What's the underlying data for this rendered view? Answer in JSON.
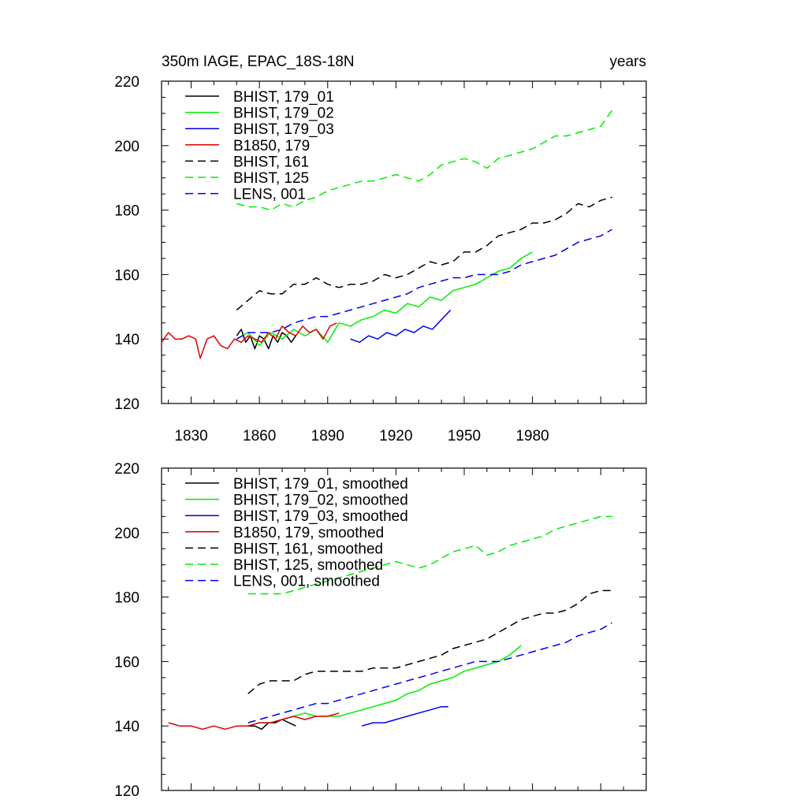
{
  "colors": {
    "black": "#000000",
    "green": "#00ee00",
    "blue": "#0000ee",
    "red": "#dd0000"
  },
  "chart_data": [
    {
      "type": "line",
      "title_left": "350m IAGE, EPAC_18S-18N",
      "title_right": "years",
      "xlim": [
        1817,
        2030
      ],
      "ylim": [
        120,
        220
      ],
      "yticks": [
        120,
        140,
        160,
        180,
        200,
        220
      ],
      "xticks": [
        1830,
        1860,
        1890,
        1920,
        1950,
        1980
      ],
      "xtick_labels": [
        "1830",
        "1860",
        "1890",
        "1920",
        "1950",
        "1980"
      ],
      "legend_position": "top-left",
      "series": [
        {
          "name": "BHIST, 179_01",
          "color": "#000000",
          "dash": false,
          "x": [
            1850,
            1852,
            1854,
            1856,
            1858,
            1860,
            1862,
            1864,
            1866,
            1868,
            1870,
            1872,
            1874,
            1876
          ],
          "y": [
            141,
            143,
            139,
            141,
            137,
            141,
            140,
            137,
            141,
            139,
            142,
            141,
            139,
            141
          ]
        },
        {
          "name": "BHIST, 179_02",
          "color": "#00ee00",
          "dash": false,
          "x": [
            1850,
            1855,
            1860,
            1865,
            1870,
            1875,
            1880,
            1885,
            1890,
            1895,
            1900,
            1905,
            1910,
            1915,
            1920,
            1925,
            1930,
            1935,
            1940,
            1945,
            1950,
            1955,
            1960,
            1965,
            1970,
            1975,
            1980
          ],
          "y": [
            140,
            142,
            138,
            142,
            140,
            143,
            141,
            143,
            139,
            145,
            144,
            146,
            147,
            149,
            148,
            151,
            150,
            153,
            152,
            155,
            156,
            157,
            159,
            161,
            162,
            165,
            167
          ]
        },
        {
          "name": "BHIST, 179_03",
          "color": "#0000ee",
          "dash": false,
          "x": [
            1900,
            1904,
            1908,
            1912,
            1916,
            1920,
            1924,
            1928,
            1932,
            1936,
            1940,
            1944
          ],
          "y": [
            140,
            139,
            141,
            140,
            142,
            141,
            143,
            142,
            144,
            143,
            146,
            149
          ]
        },
        {
          "name": "B1850, 179",
          "color": "#dd0000",
          "dash": false,
          "x": [
            1817,
            1820,
            1823,
            1826,
            1829,
            1832,
            1834,
            1837,
            1840,
            1843,
            1846,
            1849,
            1852,
            1855,
            1858,
            1861,
            1864,
            1867,
            1870,
            1873,
            1876,
            1879,
            1882,
            1885,
            1888,
            1891,
            1894
          ],
          "y": [
            139,
            142,
            140,
            140,
            141,
            140,
            134,
            140,
            141,
            138,
            137,
            140,
            139,
            141,
            140,
            139,
            142,
            140,
            144,
            142,
            141,
            144,
            142,
            143,
            140,
            144,
            145
          ]
        },
        {
          "name": "BHIST, 161",
          "color": "#000000",
          "dash": true,
          "x": [
            1850,
            1855,
            1860,
            1865,
            1870,
            1875,
            1880,
            1885,
            1890,
            1895,
            1900,
            1905,
            1910,
            1915,
            1920,
            1925,
            1930,
            1935,
            1940,
            1945,
            1950,
            1955,
            1960,
            1965,
            1970,
            1975,
            1980,
            1985,
            1990,
            1995,
            2000,
            2005,
            2010,
            2015
          ],
          "y": [
            149,
            152,
            155,
            154,
            154,
            157,
            157,
            159,
            157,
            156,
            157,
            157,
            158,
            160,
            159,
            160,
            162,
            164,
            163,
            164,
            167,
            167,
            169,
            172,
            173,
            174,
            176,
            176,
            177,
            179,
            182,
            181,
            183,
            184
          ]
        },
        {
          "name": "BHIST, 125",
          "color": "#00ee00",
          "dash": true,
          "x": [
            1850,
            1855,
            1860,
            1865,
            1870,
            1875,
            1880,
            1885,
            1890,
            1895,
            1900,
            1905,
            1910,
            1915,
            1920,
            1925,
            1930,
            1935,
            1940,
            1945,
            1950,
            1955,
            1960,
            1965,
            1970,
            1975,
            1980,
            1985,
            1990,
            1995,
            2000,
            2005,
            2010,
            2015
          ],
          "y": [
            182,
            181,
            181,
            180,
            182,
            181,
            183,
            184,
            186,
            187,
            188,
            189,
            189,
            190,
            191,
            190,
            189,
            191,
            194,
            195,
            196,
            195,
            193,
            196,
            197,
            198,
            199,
            201,
            203,
            203,
            204,
            205,
            206,
            211
          ]
        },
        {
          "name": "LENS, 001",
          "color": "#0000ee",
          "dash": true,
          "x": [
            1850,
            1855,
            1860,
            1865,
            1870,
            1875,
            1880,
            1885,
            1890,
            1895,
            1900,
            1905,
            1910,
            1915,
            1920,
            1925,
            1930,
            1935,
            1940,
            1945,
            1950,
            1955,
            1960,
            1965,
            1970,
            1975,
            1980,
            1985,
            1990,
            1995,
            2000,
            2005,
            2010,
            2015
          ],
          "y": [
            140,
            142,
            142,
            142,
            143,
            145,
            146,
            147,
            147,
            148,
            149,
            150,
            151,
            152,
            153,
            154,
            156,
            157,
            158,
            159,
            159,
            160,
            160,
            160,
            161,
            163,
            164,
            165,
            166,
            168,
            170,
            171,
            172,
            174
          ]
        }
      ]
    },
    {
      "type": "line",
      "xlim": [
        1817,
        2030
      ],
      "ylim": [
        120,
        220
      ],
      "yticks": [
        120,
        140,
        160,
        180,
        200,
        220
      ],
      "legend_position": "top-left",
      "series": [
        {
          "name": "BHIST, 179_01, smoothed",
          "color": "#000000",
          "dash": false,
          "x": [
            1855,
            1858,
            1861,
            1864,
            1867,
            1870,
            1873,
            1876
          ],
          "y": [
            140,
            140,
            139,
            141,
            141,
            142,
            141,
            140
          ]
        },
        {
          "name": "BHIST, 179_02, smoothed",
          "color": "#00ee00",
          "dash": false,
          "x": [
            1855,
            1860,
            1865,
            1870,
            1875,
            1880,
            1885,
            1890,
            1895,
            1900,
            1905,
            1910,
            1915,
            1920,
            1925,
            1930,
            1935,
            1940,
            1945,
            1950,
            1955,
            1960,
            1965,
            1970,
            1975
          ],
          "y": [
            140,
            141,
            141,
            142,
            143,
            144,
            143,
            143,
            143,
            144,
            145,
            146,
            147,
            148,
            150,
            151,
            153,
            154,
            155,
            157,
            158,
            159,
            160,
            162,
            165
          ]
        },
        {
          "name": "BHIST, 179_03, smoothed",
          "color": "#0000ee",
          "dash": false,
          "x": [
            1905,
            1910,
            1915,
            1920,
            1925,
            1930,
            1935,
            1940,
            1943
          ],
          "y": [
            140,
            141,
            141,
            142,
            143,
            144,
            145,
            146,
            146
          ]
        },
        {
          "name": "B1850, 179, smoothed",
          "color": "#dd0000",
          "dash": false,
          "x": [
            1820,
            1825,
            1830,
            1835,
            1840,
            1845,
            1850,
            1855,
            1860,
            1865,
            1870,
            1875,
            1880,
            1885,
            1890,
            1895
          ],
          "y": [
            141,
            140,
            140,
            139,
            140,
            139,
            140,
            140,
            141,
            141,
            142,
            143,
            142,
            143,
            143,
            144
          ]
        },
        {
          "name": "BHIST, 161, smoothed",
          "color": "#000000",
          "dash": true,
          "x": [
            1855,
            1860,
            1865,
            1870,
            1875,
            1880,
            1885,
            1890,
            1895,
            1900,
            1905,
            1910,
            1915,
            1920,
            1925,
            1930,
            1935,
            1940,
            1945,
            1950,
            1955,
            1960,
            1965,
            1970,
            1975,
            1980,
            1985,
            1990,
            1995,
            2000,
            2005,
            2010,
            2015
          ],
          "y": [
            150,
            153,
            154,
            154,
            154,
            156,
            157,
            157,
            157,
            157,
            157,
            158,
            158,
            158,
            159,
            160,
            161,
            162,
            164,
            165,
            166,
            167,
            169,
            171,
            173,
            174,
            175,
            175,
            176,
            178,
            181,
            182,
            182
          ]
        },
        {
          "name": "BHIST, 125, smoothed",
          "color": "#00ee00",
          "dash": true,
          "x": [
            1855,
            1860,
            1865,
            1870,
            1875,
            1880,
            1885,
            1890,
            1895,
            1900,
            1905,
            1910,
            1915,
            1920,
            1925,
            1930,
            1935,
            1940,
            1945,
            1950,
            1955,
            1960,
            1965,
            1970,
            1975,
            1980,
            1985,
            1990,
            1995,
            2000,
            2005,
            2010,
            2015
          ],
          "y": [
            181,
            181,
            181,
            181,
            182,
            183,
            184,
            185,
            186,
            187,
            188,
            189,
            190,
            191,
            190,
            189,
            190,
            192,
            194,
            195,
            196,
            193,
            194,
            196,
            197,
            198,
            199,
            201,
            202,
            203,
            204,
            205,
            205
          ]
        },
        {
          "name": "LENS, 001, smoothed",
          "color": "#0000ee",
          "dash": true,
          "x": [
            1855,
            1860,
            1865,
            1870,
            1875,
            1880,
            1885,
            1890,
            1895,
            1900,
            1905,
            1910,
            1915,
            1920,
            1925,
            1930,
            1935,
            1940,
            1945,
            1950,
            1955,
            1960,
            1965,
            1970,
            1975,
            1980,
            1985,
            1990,
            1995,
            2000,
            2005,
            2010,
            2015
          ],
          "y": [
            141,
            142,
            143,
            144,
            145,
            146,
            147,
            147,
            148,
            149,
            150,
            151,
            152,
            153,
            154,
            155,
            156,
            157,
            158,
            159,
            160,
            160,
            160,
            161,
            162,
            163,
            164,
            165,
            166,
            168,
            169,
            170,
            172
          ]
        }
      ]
    }
  ]
}
